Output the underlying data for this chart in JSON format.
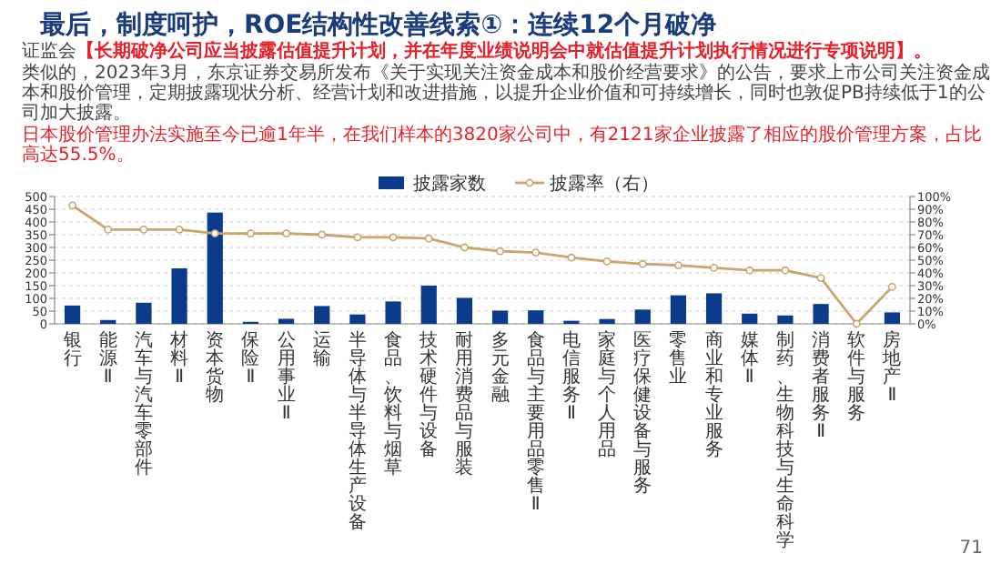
{
  "chart_data": {
    "type": "bar",
    "title": "最后，制度呵护，ROE结构性改善线索①：连续12个月破净",
    "annotations": [
      "证监会",
      "【长期破净公司应当披露估值提升计划，并在年度业绩说明会中就估值提升计划执行情况进行专项说明】。",
      "类似的，2023年3月，东京证券交易所发布《关于实现关注资金成本和股价经营要求》的公告，要求上市公司关注资金成本和股价管理，定期披露现状分析、经营计划和改进措施，以提升企业价值和可持续增长，同时也敦促PB持续低于1的公司加大披露。",
      "日本股价管理办法实施至今已逾1年半，在我们样本的3820家公司中，有2121家企业披露了相应的股价管理方案，占比高达55.5%。",
      "71"
    ],
    "categories": [
      "银行",
      "能源Ⅱ",
      "汽车与汽车零部件",
      "材料Ⅱ",
      "资本货物",
      "保险Ⅱ",
      "公用事业Ⅱ",
      "运输",
      "半导体与半导体生产设备",
      "食品、饮料与烟草",
      "技术硬件与设备",
      "耐用消费品与服装",
      "多元金融",
      "食品与主要用品零售Ⅱ",
      "电信服务Ⅱ",
      "家庭与个人用品",
      "医疗保健设备与服务",
      "零售业",
      "商业和专业服务",
      "媒体Ⅱ",
      "制药、生物科技与生命科学",
      "消费者服务Ⅱ",
      "软件与服务",
      "房地产Ⅱ"
    ],
    "series": [
      {
        "name": "披露家数",
        "type": "bar",
        "color": "#0b3c8c",
        "values": [
          72,
          15,
          83,
          218,
          437,
          8,
          20,
          70,
          37,
          88,
          150,
          102,
          52,
          53,
          12,
          19,
          56,
          112,
          120,
          40,
          33,
          78,
          0,
          45
        ]
      },
      {
        "name": "披露率（右）",
        "type": "line",
        "axis": "y2",
        "color": "#c9a46c",
        "marker": "circle",
        "values": [
          93,
          74,
          74,
          74,
          71,
          71,
          71,
          70,
          68,
          68,
          67,
          60,
          57,
          56,
          52,
          49,
          47,
          46,
          44,
          42,
          42,
          36,
          0,
          29
        ]
      }
    ],
    "ylim": [
      0,
      500
    ],
    "yticks": [
      0,
      50,
      100,
      150,
      200,
      250,
      300,
      350,
      400,
      450,
      500
    ],
    "y2lim": [
      0,
      100
    ],
    "y2ticks": [
      {
        "value": 0,
        "label": "0%"
      },
      {
        "value": 10,
        "label": "10%"
      },
      {
        "value": 20,
        "label": "20%"
      },
      {
        "value": 30,
        "label": "30%"
      },
      {
        "value": 40,
        "label": "40%"
      },
      {
        "value": 50,
        "label": "50%"
      },
      {
        "value": 60,
        "label": "60%"
      },
      {
        "value": 70,
        "label": "70%"
      },
      {
        "value": 80,
        "label": "80%"
      },
      {
        "value": 90,
        "label": "90%"
      },
      {
        "value": 100,
        "label": "100%"
      }
    ],
    "grid": "y",
    "legend": "top"
  }
}
